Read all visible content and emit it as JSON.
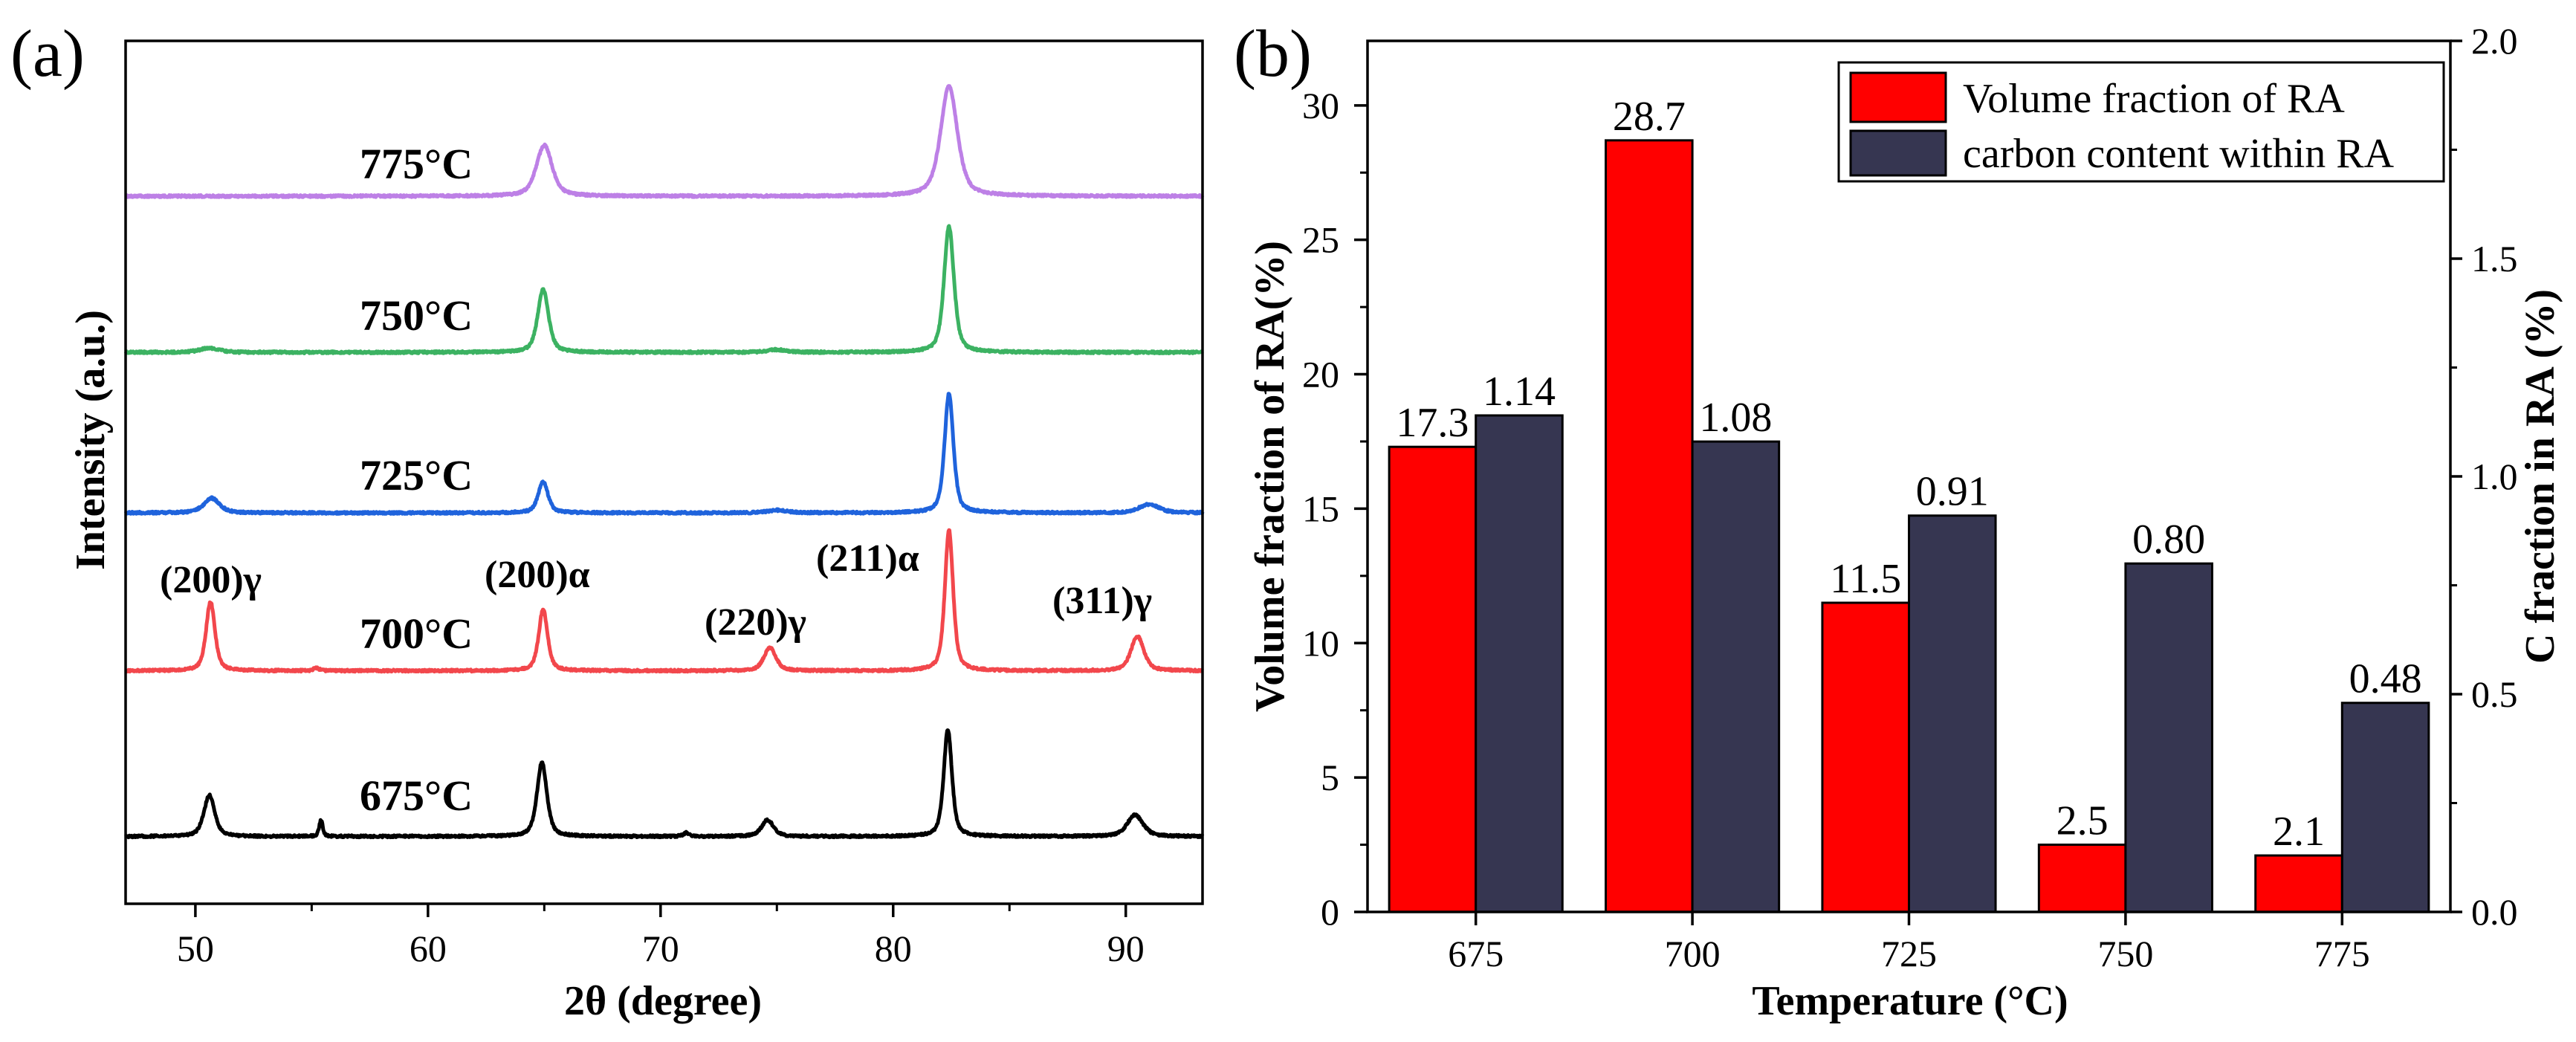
{
  "chart_data": [
    {
      "type": "line",
      "panel_label": "(a)",
      "xlabel": "2θ (degree)",
      "ylabel": "Intensity (a.u.)",
      "xlim": [
        47,
        93.3
      ],
      "ylim": [
        0,
        100
      ],
      "xticks": [
        50,
        60,
        70,
        80,
        90
      ],
      "grid": false,
      "series": [
        {
          "name": "775°C",
          "color": "#bd80e6",
          "offset": 82.0,
          "peaks": [
            {
              "pos": 65.0,
              "height": 5.9,
              "fwhm": 0.8
            },
            {
              "pos": 82.4,
              "height": 12.8,
              "fwhm": 0.85
            }
          ]
        },
        {
          "name": "750°C",
          "color": "#3cb262",
          "offset": 63.9,
          "peaks": [
            {
              "pos": 50.6,
              "height": 0.5,
              "fwhm": 1.0
            },
            {
              "pos": 64.95,
              "height": 7.3,
              "fwhm": 0.55
            },
            {
              "pos": 75.0,
              "height": 0.3,
              "fwhm": 1.0
            },
            {
              "pos": 82.4,
              "height": 14.6,
              "fwhm": 0.5
            }
          ]
        },
        {
          "name": "725°C",
          "color": "#1f63dc",
          "offset": 45.3,
          "peaks": [
            {
              "pos": 50.7,
              "height": 1.7,
              "fwhm": 0.8
            },
            {
              "pos": 64.95,
              "height": 3.6,
              "fwhm": 0.5
            },
            {
              "pos": 75.0,
              "height": 0.3,
              "fwhm": 1.0
            },
            {
              "pos": 82.4,
              "height": 13.8,
              "fwhm": 0.45
            },
            {
              "pos": 91.0,
              "height": 1.0,
              "fwhm": 1.0
            }
          ]
        },
        {
          "name": "700°C",
          "color": "#f2474c",
          "offset": 27.0,
          "peaks": [
            {
              "pos": 50.65,
              "height": 8.0,
              "fwhm": 0.45
            },
            {
              "pos": 55.2,
              "height": 0.3,
              "fwhm": 0.3
            },
            {
              "pos": 64.95,
              "height": 7.1,
              "fwhm": 0.45
            },
            {
              "pos": 74.7,
              "height": 2.7,
              "fwhm": 0.6
            },
            {
              "pos": 82.4,
              "height": 16.3,
              "fwhm": 0.42
            },
            {
              "pos": 90.5,
              "height": 4.0,
              "fwhm": 0.65
            }
          ]
        },
        {
          "name": "675°C",
          "color": "#000000",
          "offset": 7.8,
          "peaks": [
            {
              "pos": 50.6,
              "height": 4.8,
              "fwhm": 0.55
            },
            {
              "pos": 55.4,
              "height": 1.9,
              "fwhm": 0.18
            },
            {
              "pos": 64.9,
              "height": 8.6,
              "fwhm": 0.5
            },
            {
              "pos": 71.1,
              "height": 0.4,
              "fwhm": 0.3
            },
            {
              "pos": 74.6,
              "height": 1.9,
              "fwhm": 0.6
            },
            {
              "pos": 82.35,
              "height": 12.4,
              "fwhm": 0.42
            },
            {
              "pos": 90.4,
              "height": 2.5,
              "fwhm": 0.8
            }
          ]
        }
      ],
      "annotations": [
        "(200)γ",
        "(200)α",
        "(220)γ",
        "(211)α",
        "(311)γ"
      ]
    },
    {
      "type": "bar",
      "panel_label": "(b)",
      "xlabel": "Temperature (°C)",
      "ylabel": "Volume fraction of RA(%)",
      "ylabel_right": "C fraction in RA (%)",
      "categories": [
        "675",
        "700",
        "725",
        "750",
        "775"
      ],
      "ylim": [
        0,
        32.4
      ],
      "ylim_right": [
        0,
        2.0
      ],
      "yticks": [
        0,
        5,
        10,
        15,
        20,
        25,
        30
      ],
      "yticks_right": [
        "0.0",
        "0.5",
        "1.0",
        "1.5",
        "2.0"
      ],
      "grid": false,
      "series": [
        {
          "name": "Volume fraction of RA",
          "color": "#ff0000",
          "secondary_axis": false,
          "values": [
            17.3,
            28.7,
            11.5,
            2.5,
            2.1
          ],
          "value_labels": [
            "17.3",
            "28.7",
            "11.5",
            "2.5",
            "2.1"
          ]
        },
        {
          "name": "carbon content within RA",
          "color": "#363651",
          "secondary_axis": true,
          "values": [
            1.14,
            1.08,
            0.91,
            0.8,
            0.48
          ],
          "value_labels": [
            "1.14",
            "1.08",
            "0.91",
            "0.80",
            "0.48"
          ]
        }
      ]
    }
  ]
}
